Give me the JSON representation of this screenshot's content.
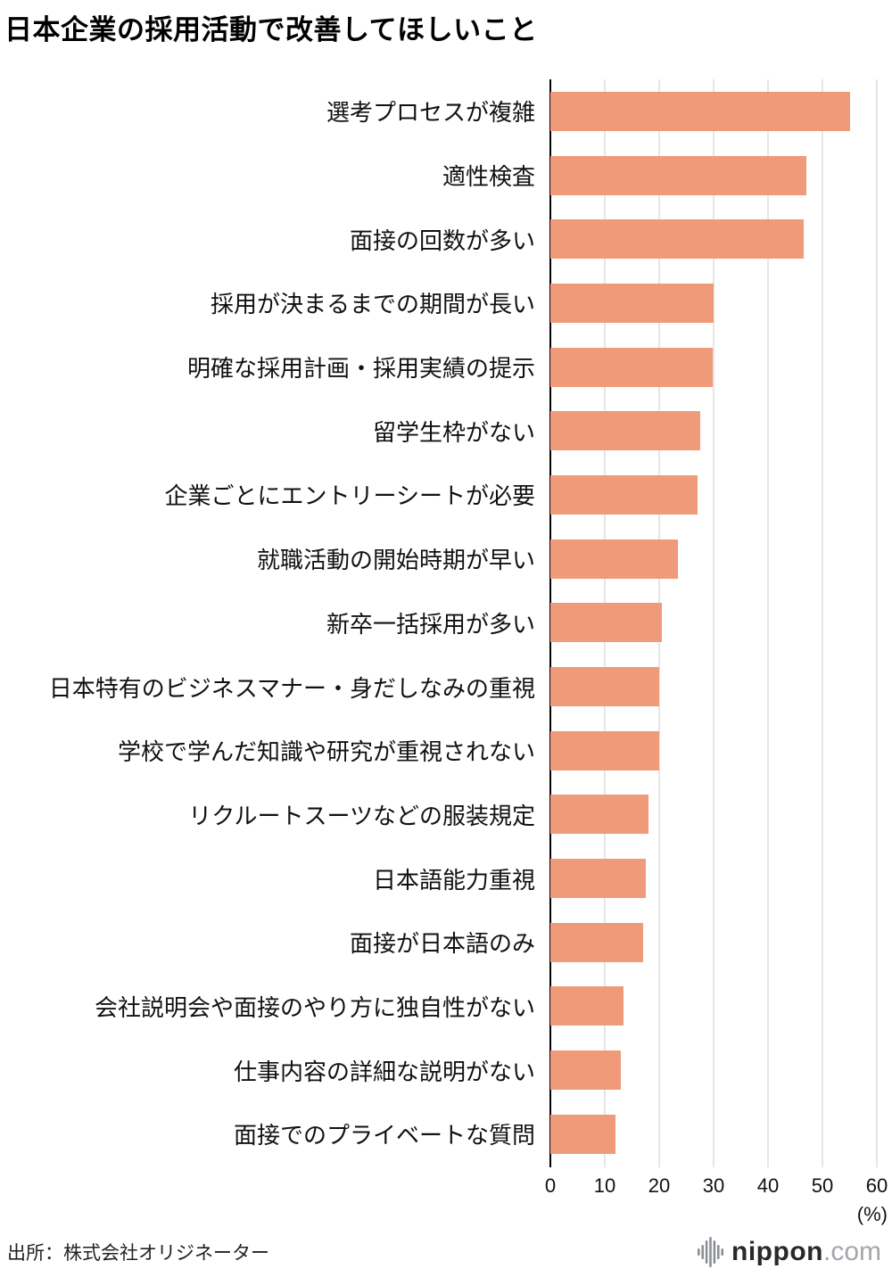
{
  "title": "日本企業の採用活動で改善してほしいこと",
  "source": "出所：株式会社オリジネーター",
  "logo": {
    "icon": "soundwave-bars-icon",
    "name": "nippon",
    "tld": ".com"
  },
  "chart_data": {
    "type": "bar",
    "orientation": "horizontal",
    "title": "日本企業の採用活動で改善してほしいこと",
    "unit_label": "(%)",
    "xlabel": "(%)",
    "xlim": [
      0,
      60
    ],
    "x_ticks": [
      0,
      10,
      20,
      30,
      40,
      50,
      60
    ],
    "grid": true,
    "bar_color": "#EF9A79",
    "categories": [
      "選考プロセスが複雑",
      "適性検査",
      "面接の回数が多い",
      "採用が決まるまでの期間が長い",
      "明確な採用計画・採用実績の提示",
      "留学生枠がない",
      "企業ごとにエントリーシートが必要",
      "就職活動の開始時期が早い",
      "新卒一括採用が多い",
      "日本特有のビジネスマナー・身だしなみの重視",
      "学校で学んだ知識や研究が重視されない",
      "リクルートスーツなどの服装規定",
      "日本語能力重視",
      "面接が日本語のみ",
      "会社説明会や面接のやり方に独自性がない",
      "仕事内容の詳細な説明がない",
      "面接でのプライベートな質問"
    ],
    "values": [
      55,
      47,
      46.5,
      30,
      29.8,
      27.5,
      27,
      23.5,
      20.5,
      20,
      20,
      18,
      17.5,
      17,
      13.5,
      13,
      12
    ]
  }
}
